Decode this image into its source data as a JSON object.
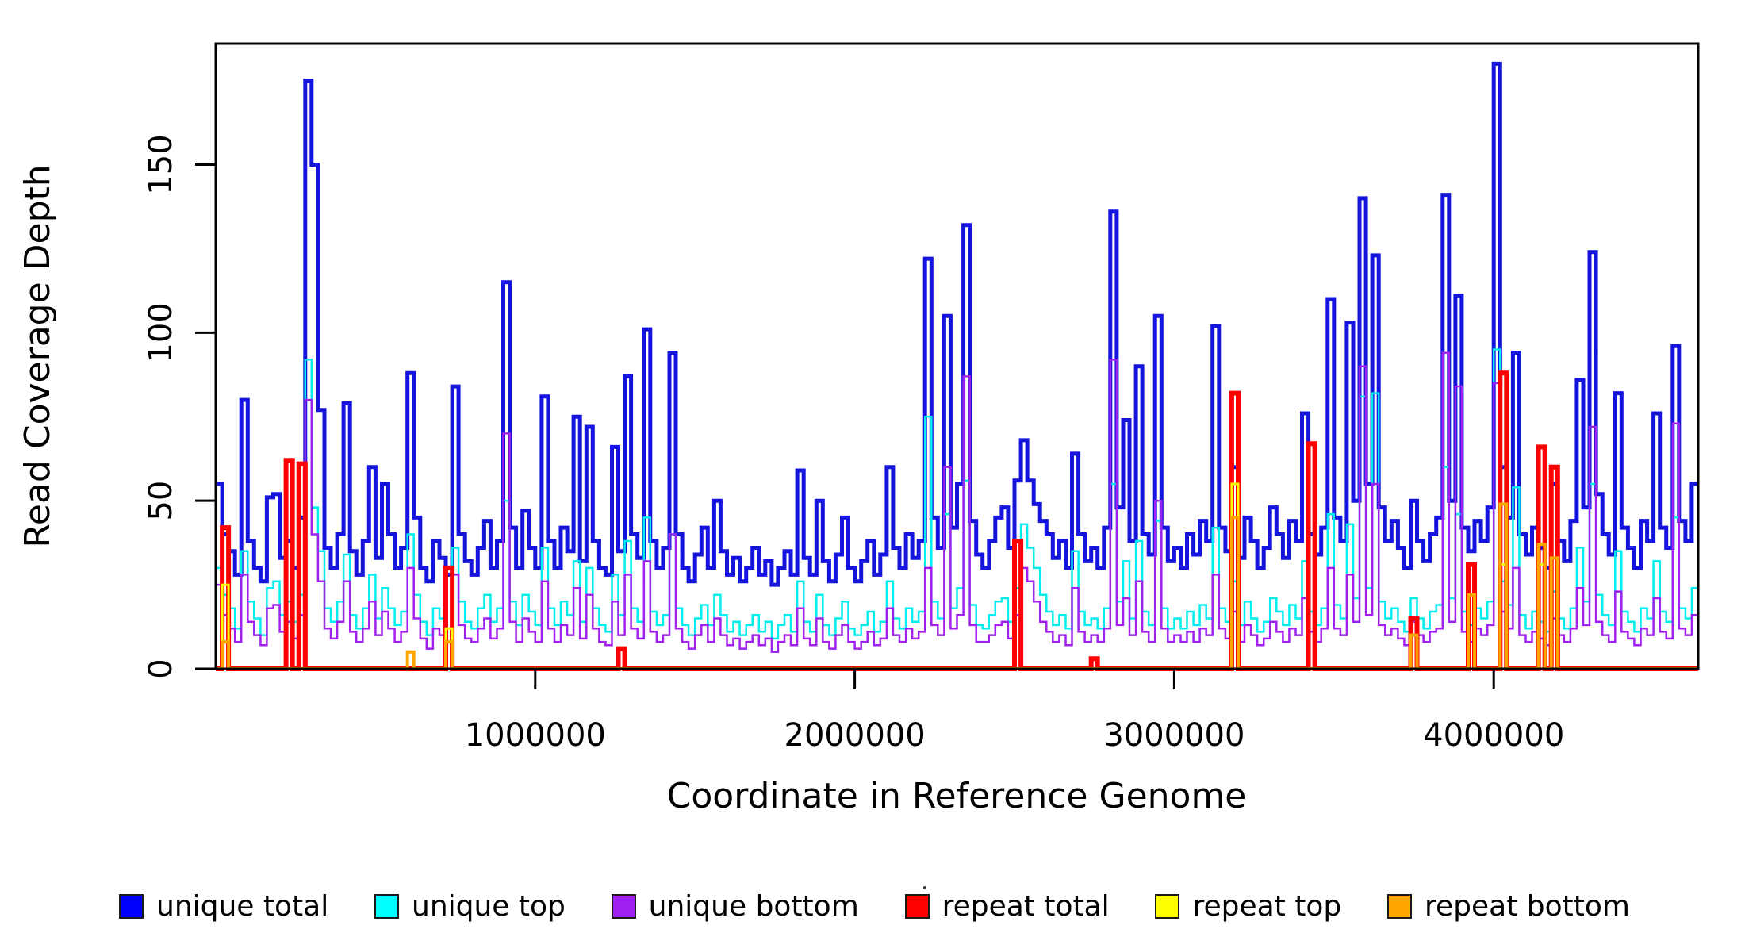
{
  "chart_data": {
    "type": "line",
    "subtype": "step-coverage",
    "title": "",
    "xlabel": "Coordinate in Reference Genome",
    "ylabel": "Read Coverage Depth",
    "xlim": [
      0,
      4640000
    ],
    "ylim": [
      0,
      186
    ],
    "grid": false,
    "legend_position": "bottom",
    "background": "#ffffff",
    "frame_color": "#000000",
    "x_step": 20000,
    "xticks": [
      {
        "value": 1000000,
        "label": "1000000"
      },
      {
        "value": 2000000,
        "label": "2000000"
      },
      {
        "value": 3000000,
        "label": "3000000"
      },
      {
        "value": 4000000,
        "label": "4000000"
      }
    ],
    "yticks": [
      {
        "value": 0,
        "label": "0"
      },
      {
        "value": 50,
        "label": "50"
      },
      {
        "value": 100,
        "label": "100"
      },
      {
        "value": 150,
        "label": "150"
      }
    ],
    "series": [
      {
        "name": "unique total",
        "color": "#1414dd",
        "swatch_color": "#0000ff",
        "values": [
          55,
          40,
          35,
          28,
          80,
          38,
          30,
          26,
          51,
          52,
          33,
          38,
          30,
          45,
          175,
          150,
          77,
          36,
          30,
          40,
          79,
          35,
          28,
          38,
          60,
          33,
          55,
          40,
          30,
          36,
          88,
          45,
          30,
          26,
          38,
          33,
          28,
          84,
          40,
          32,
          28,
          36,
          44,
          30,
          38,
          115,
          42,
          30,
          47,
          36,
          30,
          81,
          38,
          30,
          42,
          35,
          75,
          32,
          72,
          38,
          30,
          28,
          66,
          35,
          87,
          40,
          33,
          101,
          38,
          30,
          36,
          94,
          40,
          30,
          26,
          34,
          42,
          30,
          50,
          35,
          28,
          33,
          26,
          30,
          36,
          28,
          32,
          25,
          30,
          35,
          28,
          59,
          33,
          28,
          50,
          32,
          26,
          34,
          45,
          30,
          26,
          32,
          38,
          28,
          34,
          60,
          36,
          30,
          40,
          33,
          38,
          122,
          45,
          36,
          105,
          42,
          55,
          132,
          44,
          34,
          30,
          38,
          45,
          48,
          36,
          56,
          68,
          56,
          49,
          44,
          40,
          33,
          38,
          30,
          64,
          40,
          32,
          36,
          30,
          42,
          136,
          48,
          74,
          38,
          90,
          40,
          34,
          105,
          42,
          32,
          36,
          30,
          40,
          34,
          44,
          38,
          102,
          42,
          35,
          60,
          33,
          45,
          38,
          30,
          36,
          48,
          40,
          33,
          44,
          38,
          76,
          40,
          34,
          42,
          110,
          45,
          38,
          103,
          50,
          140,
          55,
          123,
          48,
          38,
          44,
          36,
          30,
          50,
          38,
          32,
          40,
          45,
          141,
          50,
          111,
          42,
          35,
          44,
          38,
          48,
          180,
          60,
          45,
          94,
          40,
          34,
          42,
          36,
          30,
          55,
          38,
          32,
          44,
          86,
          48,
          124,
          52,
          40,
          34,
          82,
          42,
          36,
          30,
          44,
          38,
          76,
          42,
          36,
          96,
          44,
          38,
          55
        ]
      },
      {
        "name": "unique top",
        "color": "#00eeee",
        "swatch_color": "#00ffff",
        "values": [
          30,
          22,
          18,
          12,
          35,
          20,
          15,
          10,
          24,
          26,
          16,
          20,
          14,
          22,
          92,
          48,
          35,
          18,
          14,
          20,
          34,
          16,
          12,
          18,
          28,
          15,
          24,
          18,
          13,
          17,
          40,
          22,
          14,
          10,
          18,
          15,
          12,
          36,
          20,
          14,
          12,
          18,
          22,
          14,
          18,
          50,
          20,
          13,
          22,
          17,
          13,
          36,
          18,
          13,
          20,
          16,
          32,
          14,
          30,
          18,
          13,
          11,
          28,
          16,
          38,
          18,
          14,
          45,
          17,
          13,
          16,
          40,
          18,
          13,
          10,
          15,
          19,
          13,
          22,
          16,
          11,
          14,
          10,
          13,
          16,
          11,
          14,
          9,
          13,
          16,
          11,
          26,
          14,
          11,
          22,
          13,
          10,
          15,
          20,
          12,
          10,
          13,
          17,
          11,
          14,
          26,
          15,
          12,
          18,
          14,
          17,
          75,
          20,
          15,
          46,
          18,
          24,
          56,
          19,
          13,
          12,
          16,
          20,
          21,
          14,
          24,
          43,
          36,
          30,
          22,
          17,
          13,
          16,
          12,
          35,
          17,
          13,
          15,
          12,
          18,
          55,
          20,
          32,
          15,
          38,
          17,
          13,
          44,
          18,
          12,
          15,
          12,
          17,
          13,
          19,
          15,
          42,
          18,
          14,
          26,
          13,
          20,
          15,
          11,
          14,
          21,
          17,
          13,
          19,
          15,
          32,
          17,
          13,
          18,
          46,
          19,
          15,
          43,
          21,
          81,
          24,
          82,
          20,
          15,
          18,
          14,
          11,
          21,
          15,
          12,
          17,
          19,
          60,
          21,
          46,
          17,
          13,
          18,
          15,
          20,
          95,
          26,
          19,
          54,
          16,
          12,
          17,
          14,
          11,
          23,
          15,
          12,
          18,
          36,
          20,
          55,
          22,
          16,
          13,
          35,
          17,
          14,
          11,
          18,
          15,
          32,
          17,
          14,
          45,
          18,
          15,
          24
        ]
      },
      {
        "name": "unique bottom",
        "color": "#a020f0",
        "swatch_color": "#a020f0",
        "values": [
          25,
          16,
          12,
          8,
          28,
          14,
          10,
          7,
          18,
          19,
          11,
          14,
          9,
          16,
          80,
          40,
          26,
          12,
          9,
          14,
          26,
          11,
          8,
          12,
          20,
          10,
          17,
          12,
          8,
          11,
          30,
          15,
          9,
          6,
          12,
          10,
          8,
          28,
          13,
          9,
          8,
          12,
          15,
          9,
          12,
          70,
          14,
          8,
          15,
          11,
          8,
          26,
          12,
          8,
          13,
          10,
          24,
          9,
          22,
          12,
          8,
          7,
          20,
          10,
          28,
          12,
          9,
          32,
          11,
          8,
          10,
          40,
          12,
          8,
          6,
          10,
          13,
          8,
          15,
          10,
          7,
          9,
          6,
          8,
          10,
          7,
          9,
          5,
          8,
          10,
          7,
          18,
          9,
          7,
          15,
          8,
          6,
          10,
          13,
          8,
          6,
          8,
          11,
          7,
          9,
          18,
          10,
          8,
          12,
          9,
          11,
          30,
          13,
          10,
          60,
          12,
          16,
          87,
          13,
          8,
          8,
          10,
          13,
          14,
          9,
          16,
          30,
          26,
          20,
          14,
          11,
          8,
          10,
          7,
          24,
          11,
          8,
          10,
          8,
          12,
          92,
          13,
          21,
          10,
          26,
          11,
          8,
          50,
          12,
          8,
          10,
          8,
          11,
          8,
          12,
          10,
          28,
          12,
          9,
          17,
          8,
          13,
          10,
          7,
          9,
          14,
          11,
          8,
          12,
          10,
          21,
          11,
          8,
          12,
          30,
          12,
          10,
          28,
          14,
          90,
          16,
          55,
          13,
          10,
          12,
          9,
          7,
          14,
          10,
          8,
          11,
          12,
          94,
          14,
          84,
          11,
          8,
          12,
          10,
          13,
          85,
          17,
          12,
          30,
          10,
          8,
          11,
          9,
          7,
          15,
          10,
          8,
          12,
          24,
          13,
          72,
          14,
          10,
          8,
          23,
          11,
          9,
          7,
          12,
          10,
          21,
          11,
          9,
          73,
          12,
          10,
          16
        ]
      },
      {
        "name": "repeat total",
        "color": "#ff0000",
        "swatch_color": "#ff0000",
        "default": 0,
        "points": [
          [
            1,
            42
          ],
          [
            11,
            62
          ],
          [
            13,
            61
          ],
          [
            36,
            30
          ],
          [
            63,
            6
          ],
          [
            125,
            38
          ],
          [
            137,
            3
          ],
          [
            159,
            82
          ],
          [
            171,
            67
          ],
          [
            187,
            15
          ],
          [
            196,
            31
          ],
          [
            201,
            88
          ],
          [
            207,
            66
          ],
          [
            209,
            60
          ]
        ]
      },
      {
        "name": "repeat top",
        "color": "#ffff00",
        "swatch_color": "#ffff00",
        "default": 0,
        "points": [
          [
            1,
            25
          ],
          [
            36,
            12
          ],
          [
            159,
            55
          ],
          [
            201,
            31
          ],
          [
            207,
            31
          ]
        ]
      },
      {
        "name": "repeat bottom",
        "color": "#ffa500",
        "swatch_color": "#ffa500",
        "default": 0,
        "points": [
          [
            1,
            8
          ],
          [
            30,
            5
          ],
          [
            36,
            8
          ],
          [
            159,
            45
          ],
          [
            187,
            10
          ],
          [
            196,
            22
          ],
          [
            201,
            49
          ],
          [
            207,
            37
          ],
          [
            209,
            33
          ]
        ]
      }
    ]
  }
}
